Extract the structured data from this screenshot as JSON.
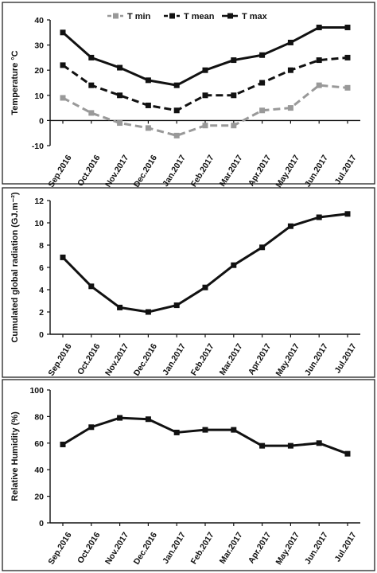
{
  "chart_data": [
    {
      "type": "line",
      "ylabel": "Temperature °C",
      "ylim": [
        -10,
        40
      ],
      "yticks": [
        -10,
        0,
        10,
        20,
        30,
        40
      ],
      "categories": [
        "Sep.2016",
        "Oct.2016",
        "Nov.2017",
        "Dec.2016",
        "Jan.2017",
        "Feb.2017",
        "Mar.2017",
        "Apr.2017",
        "May.2017",
        "Jun.2017",
        "Jul.2017"
      ],
      "legend_position": "top-right",
      "series": [
        {
          "name": "T min",
          "color": "#999999",
          "dash": "dashed",
          "values": [
            9,
            3,
            -1,
            -3,
            -6,
            -2,
            -2,
            4,
            5,
            14,
            13
          ]
        },
        {
          "name": "T mean",
          "color": "#111111",
          "dash": "dashed",
          "values": [
            22,
            14,
            10,
            6,
            4,
            10,
            10,
            15,
            20,
            24,
            25
          ]
        },
        {
          "name": "T max",
          "color": "#111111",
          "dash": "solid",
          "values": [
            35,
            25,
            21,
            16,
            14,
            20,
            24,
            26,
            31,
            37,
            37
          ]
        }
      ]
    },
    {
      "type": "line",
      "ylabel": "Cumulated global radiation (GJ.m⁻²)",
      "ylim": [
        0,
        12
      ],
      "yticks": [
        0,
        2,
        4,
        6,
        8,
        10,
        12
      ],
      "categories": [
        "Sep.2016",
        "Oct.2016",
        "Nov.2017",
        "Dec.2016",
        "Jan.2017",
        "Feb.2017",
        "Mar.2017",
        "Apr.2017",
        "May.2017",
        "Jun.2017",
        "Jul.2017"
      ],
      "series": [
        {
          "color": "#111111",
          "dash": "solid",
          "values": [
            6.9,
            4.3,
            2.4,
            2.0,
            2.6,
            4.2,
            6.2,
            7.8,
            9.7,
            10.5,
            10.8
          ]
        }
      ]
    },
    {
      "type": "line",
      "ylabel": "Relative Humidity (%)",
      "ylim": [
        0,
        100
      ],
      "yticks": [
        0,
        20,
        40,
        60,
        80,
        100
      ],
      "categories": [
        "Sep.2016",
        "Oct.2016",
        "Nov.2017",
        "Dec.2016",
        "Jan.2017",
        "Feb.2017",
        "Mar.2017",
        "Apr.2017",
        "May.2017",
        "Jun.2017",
        "Jul.2017"
      ],
      "series": [
        {
          "color": "#111111",
          "dash": "solid",
          "values": [
            59,
            72,
            79,
            78,
            68,
            70,
            70,
            58,
            58,
            60,
            52
          ]
        }
      ]
    }
  ]
}
